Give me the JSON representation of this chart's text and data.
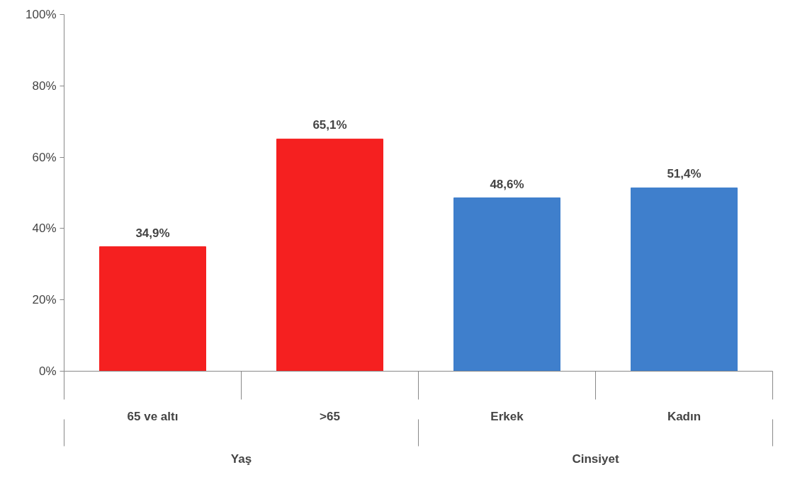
{
  "chart_data": {
    "type": "bar",
    "categories": [
      "65 ve altı",
      ">65",
      "Erkek",
      "Kadın"
    ],
    "values": [
      34.9,
      65.1,
      48.6,
      51.4
    ],
    "colors": [
      "#f52020",
      "#f52020",
      "#3f7fcc",
      "#3f7fcc"
    ],
    "value_labels": [
      "34,9%",
      "65,1%",
      "48,6%",
      "51,4%"
    ],
    "ylim": [
      0,
      100
    ],
    "yticks": [
      {
        "value": 0,
        "label": "0%"
      },
      {
        "value": 20,
        "label": "20%"
      },
      {
        "value": 40,
        "label": "40%"
      },
      {
        "value": 60,
        "label": "60%"
      },
      {
        "value": 80,
        "label": "80%"
      },
      {
        "value": 100,
        "label": "100%"
      }
    ],
    "annotations": [
      "Yaş",
      "Cinsiyet"
    ],
    "grid": false
  }
}
